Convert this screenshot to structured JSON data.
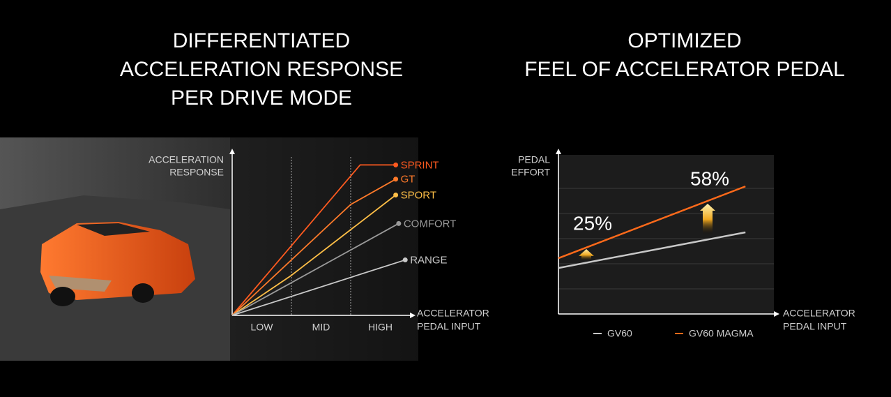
{
  "chart_data": [
    {
      "type": "line",
      "title": [
        "DIFFERENTIATED",
        "ACCELERATION RESPONSE",
        "PER DRIVE MODE"
      ],
      "y_label": [
        "ACCELERATION",
        "RESPONSE"
      ],
      "x_label": [
        "ACCELERATOR",
        "PEDAL INPUT"
      ],
      "categories": [
        "LOW",
        "MID",
        "HIGH"
      ],
      "xlim": [
        0,
        3
      ],
      "ylim": [
        0,
        10
      ],
      "series": [
        {
          "name": "SPRINT",
          "color": "#ff5a1f",
          "x": [
            0,
            2.16,
            2.76
          ],
          "values": [
            0,
            9.5,
            9.5
          ]
        },
        {
          "name": "GT",
          "color": "#ff7a2a",
          "x": [
            0,
            2.0,
            2.76
          ],
          "values": [
            0,
            7.0,
            8.6
          ]
        },
        {
          "name": "SPORT",
          "color": "#ffbf47",
          "x": [
            0,
            0.99,
            2.76
          ],
          "values": [
            0,
            2.5,
            7.6
          ]
        },
        {
          "name": "COMFORT",
          "color": "#9a9a9a",
          "x": [
            0,
            2.81
          ],
          "values": [
            0,
            5.8
          ]
        },
        {
          "name": "RANGE",
          "color": "#c8c8c8",
          "x": [
            0,
            2.92
          ],
          "values": [
            0,
            3.5
          ]
        }
      ]
    },
    {
      "type": "line",
      "title": [
        "OPTIMIZED",
        "FEEL OF ACCELERATOR PEDAL"
      ],
      "y_label": [
        "PEDAL",
        "EFFORT"
      ],
      "x_label": [
        "ACCELERATOR",
        "PEDAL INPUT"
      ],
      "xlim": [
        0,
        10
      ],
      "ylim": [
        0,
        6.25
      ],
      "yticks": [
        1,
        2,
        3,
        4,
        5
      ],
      "grid": true,
      "series": [
        {
          "name": "GV60",
          "color": "#c8c8c8",
          "x": [
            0,
            8.68
          ],
          "values": [
            1.83,
            3.25
          ]
        },
        {
          "name": "GV60 MAGMA",
          "color": "#ff6a1a",
          "x": [
            0,
            8.68
          ],
          "values": [
            2.22,
            5.08
          ]
        }
      ],
      "annotations": [
        {
          "value": 25,
          "label": "25%"
        },
        {
          "value": 58,
          "label": "58%"
        }
      ]
    }
  ]
}
